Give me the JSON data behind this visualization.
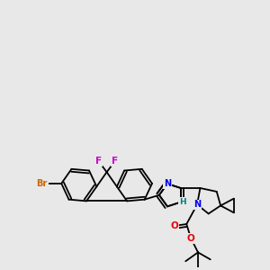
{
  "background_color": "#e8e8e8",
  "atom_colors": {
    "Br": "#cc6600",
    "F": "#cc00cc",
    "N": "#0000ee",
    "O": "#ee0000",
    "NH": "#008080",
    "C": "#000000"
  },
  "bond_lw": 1.3,
  "font_size": 7.0
}
